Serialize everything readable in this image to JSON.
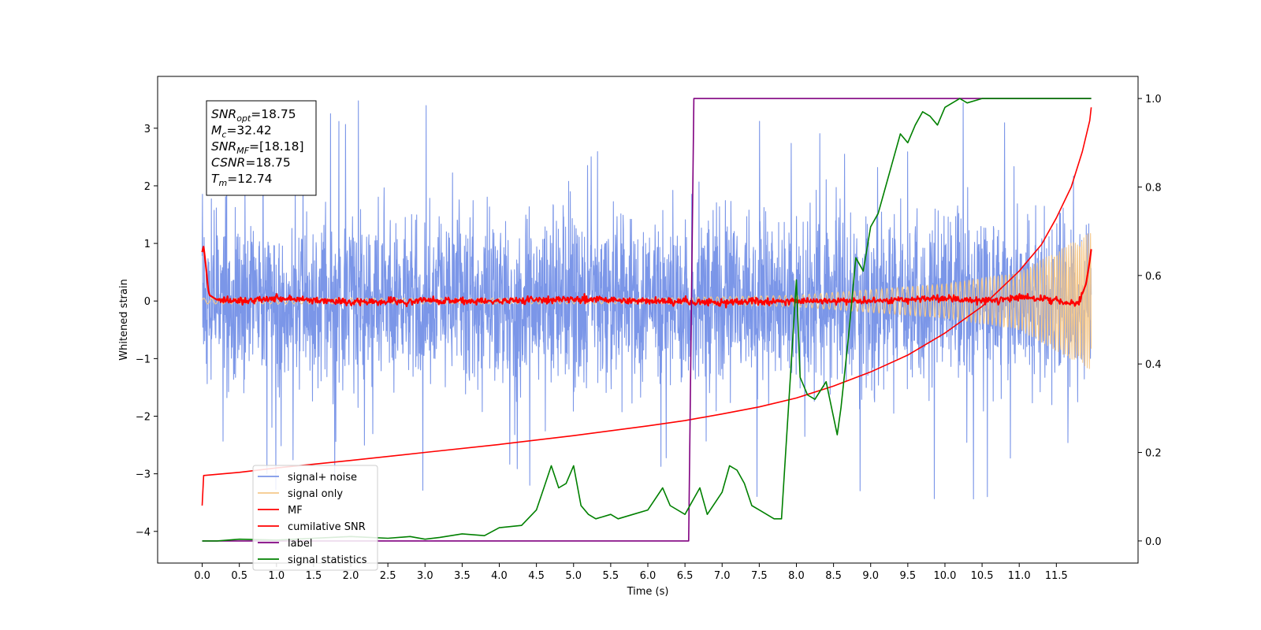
{
  "chart_data": {
    "type": "line",
    "xlabel": "Time (s)",
    "ylabel": "Whitened strain",
    "xlim": [
      -0.6,
      12.6
    ],
    "ylim_left": [
      -4.55,
      3.9
    ],
    "ylim_right": [
      -0.05,
      1.05
    ],
    "grid": false,
    "legend_placement": "lower-left",
    "x_ticks": [
      "0.0",
      "0.5",
      "1.0",
      "1.5",
      "2.0",
      "2.5",
      "3.0",
      "3.5",
      "4.0",
      "4.5",
      "5.0",
      "5.5",
      "6.0",
      "6.5",
      "7.0",
      "7.5",
      "8.0",
      "8.5",
      "9.0",
      "9.5",
      "10.0",
      "10.5",
      "11.0",
      "11.5"
    ],
    "y_ticks_left": [
      "3",
      "2",
      "1",
      "0",
      "−1",
      "−2",
      "−3",
      "−4"
    ],
    "y_ticks_right": [
      "1.0",
      "0.8",
      "0.6",
      "0.4",
      "0.2",
      "0.0"
    ],
    "annotation": [
      {
        "name": "SNR",
        "sub": "opt",
        "value": "=18.75"
      },
      {
        "name": "M",
        "sub": "c",
        "value": "=32.42"
      },
      {
        "name": "SNR",
        "sub": "MF",
        "value": "=[18.18]"
      },
      {
        "name": "CSNR",
        "sub": "",
        "value": "=18.75"
      },
      {
        "name": "T",
        "sub": "m",
        "value": "=12.74"
      }
    ],
    "legend": [
      {
        "label": "signal+ noise",
        "color": "#7b96e8"
      },
      {
        "label": "signal only",
        "color": "#f5c88a"
      },
      {
        "label": "MF",
        "color": "#ff0000"
      },
      {
        "label": "cumilative SNR",
        "color": "#ff0000"
      },
      {
        "label": "label",
        "color": "#800080"
      },
      {
        "label": "signal statistics",
        "color": "#008000"
      }
    ],
    "series": [
      {
        "name": "signal+ noise",
        "axis": "left",
        "style": "noise-band",
        "x_range": [
          0.0,
          11.97
        ],
        "typical_range": [
          -1.6,
          1.9
        ],
        "spike_max": 3.55,
        "spike_min": -3.6
      },
      {
        "name": "signal only",
        "axis": "left",
        "style": "chirp",
        "x_range": [
          0.0,
          11.97
        ],
        "envelope": {
          "x": [
            0.0,
            6.0,
            8.0,
            10.0,
            11.0,
            11.97
          ],
          "amplitude": [
            0.05,
            0.05,
            0.1,
            0.3,
            0.5,
            1.2
          ]
        }
      },
      {
        "name": "MF",
        "axis": "left",
        "x": [
          0.0,
          0.02,
          0.05,
          0.08,
          0.1,
          0.2,
          0.5,
          1.0,
          2.0,
          3.0,
          4.0,
          5.0,
          6.0,
          7.0,
          8.0,
          9.0,
          10.0,
          10.5,
          11.0,
          11.5,
          11.8,
          11.9,
          11.95,
          11.97
        ],
        "y": [
          0.85,
          0.95,
          0.6,
          0.2,
          0.1,
          0.02,
          0.0,
          0.05,
          -0.02,
          0.0,
          0.0,
          0.03,
          0.0,
          -0.02,
          0.0,
          0.0,
          0.05,
          0.0,
          0.08,
          0.0,
          -0.05,
          0.3,
          0.7,
          0.9
        ]
      },
      {
        "name": "cumilative SNR",
        "axis": "right",
        "x": [
          0.0,
          0.02,
          0.5,
          1.0,
          2.0,
          3.0,
          4.0,
          5.0,
          6.0,
          6.5,
          7.0,
          7.5,
          8.0,
          8.5,
          9.0,
          9.5,
          10.0,
          10.5,
          11.0,
          11.3,
          11.5,
          11.7,
          11.85,
          11.95,
          11.97
        ],
        "y": [
          0.08,
          0.148,
          0.155,
          0.165,
          0.182,
          0.2,
          0.218,
          0.238,
          0.26,
          0.272,
          0.287,
          0.303,
          0.323,
          0.35,
          0.382,
          0.42,
          0.47,
          0.53,
          0.61,
          0.67,
          0.73,
          0.8,
          0.88,
          0.95,
          0.98
        ]
      },
      {
        "name": "label",
        "axis": "right",
        "x": [
          0.0,
          6.55,
          6.62,
          11.97
        ],
        "y": [
          0.0,
          0.0,
          1.0,
          1.0
        ]
      },
      {
        "name": "signal statistics",
        "axis": "right",
        "x": [
          0.0,
          0.2,
          0.5,
          1.0,
          1.5,
          2.0,
          2.5,
          2.8,
          3.0,
          3.2,
          3.5,
          3.8,
          4.0,
          4.3,
          4.5,
          4.6,
          4.7,
          4.8,
          4.9,
          5.0,
          5.1,
          5.2,
          5.3,
          5.5,
          5.6,
          5.8,
          6.0,
          6.2,
          6.3,
          6.5,
          6.7,
          6.8,
          7.0,
          7.1,
          7.2,
          7.3,
          7.4,
          7.5,
          7.7,
          7.8,
          7.9,
          8.0,
          8.05,
          8.15,
          8.25,
          8.4,
          8.55,
          8.6,
          8.7,
          8.8,
          8.9,
          9.0,
          9.1,
          9.2,
          9.3,
          9.4,
          9.5,
          9.6,
          9.7,
          9.8,
          9.9,
          10.0,
          10.1,
          10.2,
          10.3,
          10.5,
          10.7,
          11.0,
          11.5,
          11.97
        ],
        "y": [
          0.0,
          0.0,
          0.004,
          0.002,
          0.006,
          0.01,
          0.006,
          0.01,
          0.004,
          0.008,
          0.016,
          0.012,
          0.03,
          0.035,
          0.07,
          0.12,
          0.17,
          0.12,
          0.13,
          0.17,
          0.08,
          0.06,
          0.05,
          0.06,
          0.05,
          0.06,
          0.07,
          0.12,
          0.08,
          0.06,
          0.12,
          0.06,
          0.11,
          0.17,
          0.16,
          0.13,
          0.08,
          0.07,
          0.05,
          0.05,
          0.32,
          0.59,
          0.37,
          0.33,
          0.32,
          0.36,
          0.24,
          0.3,
          0.46,
          0.64,
          0.61,
          0.71,
          0.74,
          0.8,
          0.86,
          0.92,
          0.9,
          0.94,
          0.97,
          0.96,
          0.94,
          0.98,
          0.99,
          1.0,
          0.99,
          1.0,
          1.0,
          1.0,
          1.0,
          1.0
        ]
      }
    ]
  }
}
